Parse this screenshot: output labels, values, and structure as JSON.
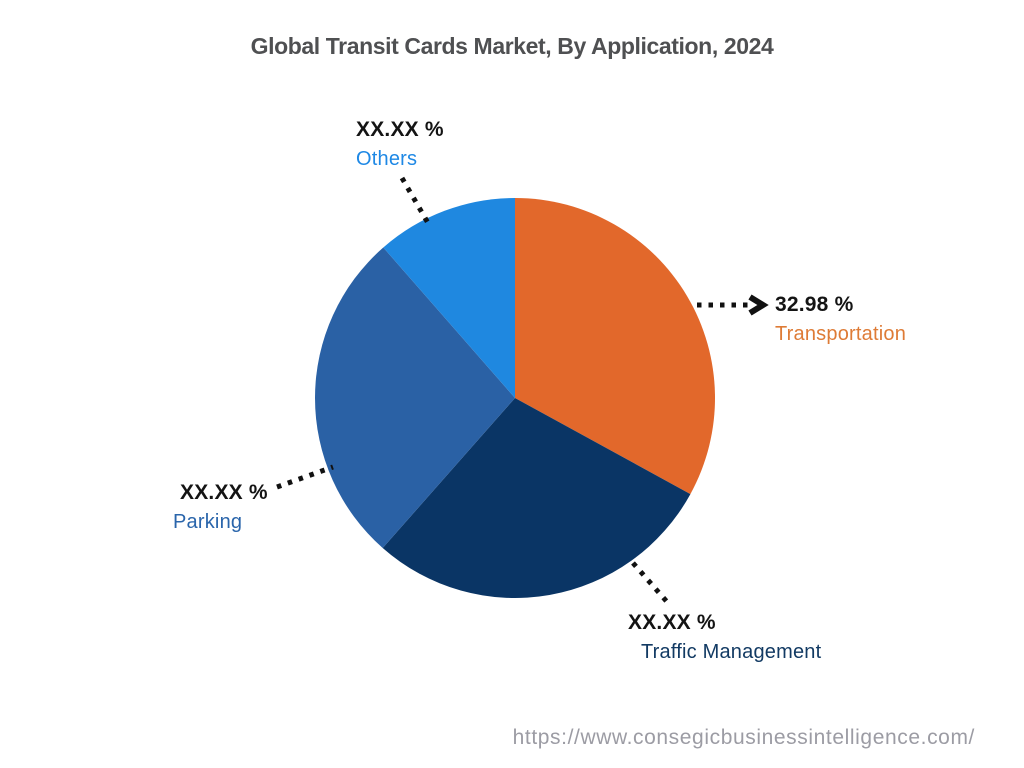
{
  "page": {
    "background": "#ffffff",
    "footer_url": "https://www.consegicbusinessintelligence.com/"
  },
  "chart_data": {
    "type": "pie",
    "title": "Global Transit Cards Market, By Application, 2024",
    "unit": "%",
    "start_angle_deg": 0,
    "direction": "clockwise",
    "legend_position": "callout-labels",
    "segments": [
      {
        "name": "Transportation",
        "display_value": "32.98 %",
        "value_pct": 32.98,
        "value_masked": false,
        "color": "#E2682B",
        "label_color": "#DE7B36"
      },
      {
        "name": "Traffic Management",
        "display_value": "XX.XX %",
        "value_pct": 28.52,
        "value_masked": true,
        "color": "#0A3565",
        "label_color": "#123A63"
      },
      {
        "name": "Parking",
        "display_value": "XX.XX %",
        "value_pct": 27.06,
        "value_masked": true,
        "color": "#2A61A5",
        "label_color": "#2A65AB"
      },
      {
        "name": "Others",
        "display_value": "XX.XX %",
        "value_pct": 11.44,
        "value_masked": true,
        "color": "#1F88E0",
        "label_color": "#1E88E5"
      }
    ]
  }
}
